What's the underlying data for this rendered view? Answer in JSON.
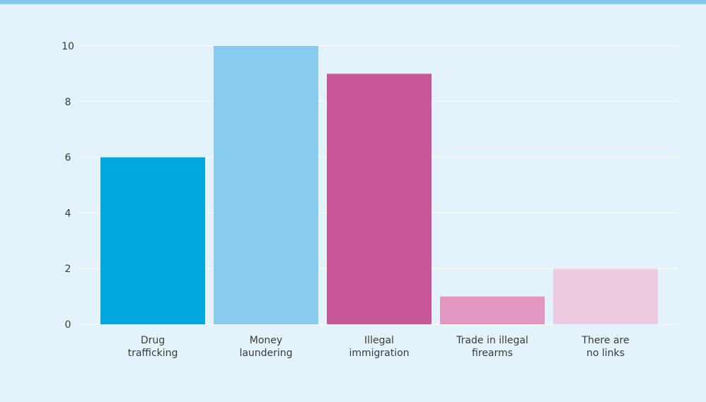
{
  "chart_data": {
    "type": "bar",
    "categories": [
      [
        "Drug",
        "trafficking"
      ],
      [
        "Money",
        "laundering"
      ],
      [
        "Illegal",
        "immigration"
      ],
      [
        "Trade in illegal",
        "firearms"
      ],
      [
        "There are",
        "no links"
      ]
    ],
    "values": [
      6,
      10,
      9,
      1,
      2
    ],
    "bar_colors": [
      "#00a7e1",
      "#87ccef",
      "#c75797",
      "#e197c0",
      "#eecbe0"
    ],
    "yticks": [
      0,
      2,
      4,
      6,
      8,
      10
    ],
    "ylim": [
      0,
      10
    ],
    "grid": true,
    "title": "",
    "xlabel": "",
    "ylabel": ""
  },
  "colors": {
    "background": "#e4f2fb",
    "top_bar": "#87c9ee",
    "gridline": "#ffffff"
  }
}
